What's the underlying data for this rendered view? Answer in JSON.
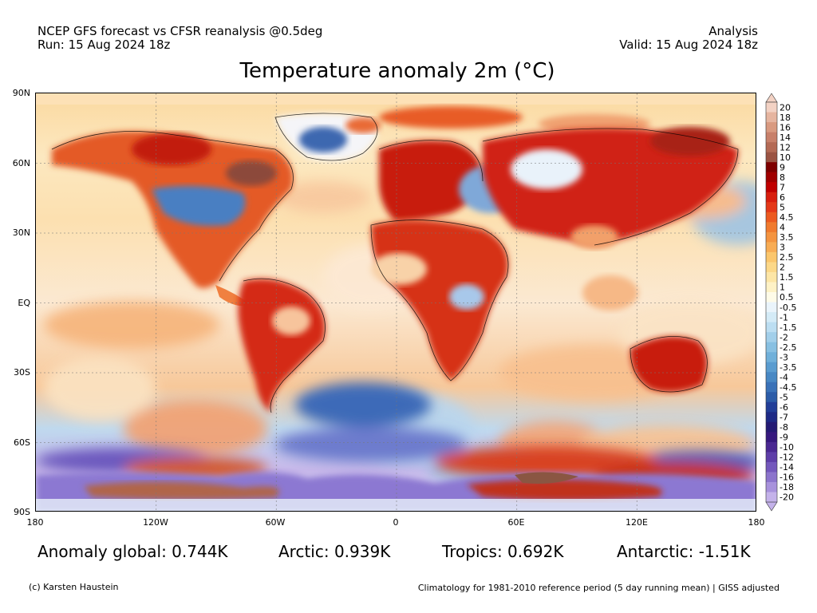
{
  "header": {
    "model_line": "NCEP GFS forecast vs CFSR reanalysis @0.5deg",
    "run_line": "Run: 15 Aug 2024 18z",
    "type_line": "Analysis",
    "valid_line": "Valid: 15 Aug 2024 18z"
  },
  "title": "Temperature anomaly 2m (°C)",
  "map": {
    "lat_labels": [
      "90N",
      "60N",
      "30N",
      "EQ",
      "30S",
      "60S",
      "90S"
    ],
    "lon_labels": [
      "180",
      "120W",
      "60W",
      "0",
      "60E",
      "120E",
      "180"
    ]
  },
  "legend": {
    "labels": [
      "20",
      "18",
      "16",
      "14",
      "12",
      "10",
      "9",
      "8",
      "7",
      "6",
      "5",
      "4.5",
      "4",
      "3.5",
      "3",
      "2.5",
      "2",
      "1.5",
      "1",
      "0.5",
      "-0.5",
      "-1",
      "-1.5",
      "-2",
      "-2.5",
      "-3",
      "-3.5",
      "-4",
      "-4.5",
      "-5",
      "-6",
      "-7",
      "-8",
      "-9",
      "-10",
      "-12",
      "-14",
      "-16",
      "-18",
      "-20"
    ],
    "colors": [
      "#f3d2c4",
      "#e6b5a0",
      "#d99a80",
      "#c8806a",
      "#b46a55",
      "#9b5443",
      "#7e0000",
      "#a00000",
      "#c00000",
      "#d81e0e",
      "#e43818",
      "#ec5a20",
      "#f07a2e",
      "#f49440",
      "#f8ac54",
      "#fbc66c",
      "#fcd888",
      "#fde6a6",
      "#fef2c6",
      "#fefbe8",
      "#eaf4fb",
      "#d4ebf7",
      "#bcdef2",
      "#a2cfea",
      "#88c0e2",
      "#70b0da",
      "#5a9cd0",
      "#4888c4",
      "#3a72b8",
      "#2c5ca8",
      "#223e98",
      "#1e2a86",
      "#241a74",
      "#36187e",
      "#4a2892",
      "#5e3ea8",
      "#7458bc",
      "#8c74cc",
      "#a892dc",
      "#c4b2ea"
    ]
  },
  "stats": {
    "global": "Anomaly global: 0.744K",
    "arctic": "Arctic: 0.939K",
    "tropics": "Tropics: 0.692K",
    "antarctic": "Antarctic: -1.51K"
  },
  "footer": {
    "credit": "(c) Karsten Haustein",
    "note": "Climatology for 1981-2010 reference period (5 day running mean) | GISS adjusted"
  }
}
